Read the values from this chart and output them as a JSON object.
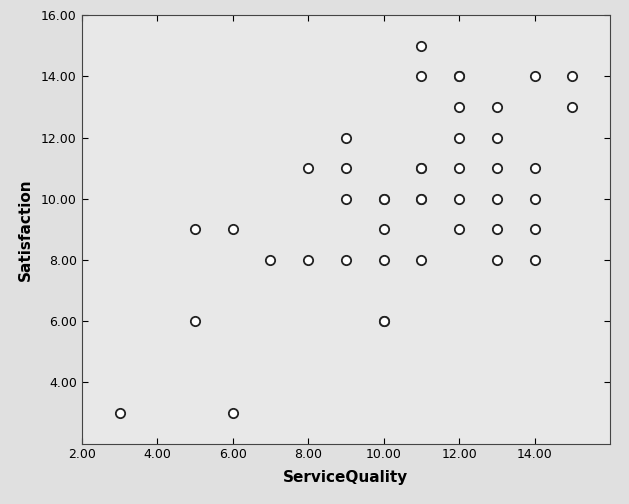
{
  "x": [
    3,
    6,
    5,
    5,
    6,
    7,
    8,
    8,
    9,
    9,
    9,
    9,
    10,
    10,
    10,
    10,
    10,
    10,
    11,
    11,
    11,
    11,
    11,
    11,
    11,
    12,
    12,
    12,
    12,
    12,
    12,
    12,
    13,
    13,
    13,
    13,
    13,
    13,
    14,
    14,
    14,
    14,
    14,
    15,
    15
  ],
  "y": [
    3,
    3,
    9,
    6,
    9,
    8,
    8,
    11,
    8,
    11,
    10,
    12,
    6,
    8,
    9,
    10,
    10,
    6,
    15,
    14,
    11,
    11,
    10,
    10,
    8,
    13,
    14,
    14,
    12,
    11,
    10,
    9,
    13,
    12,
    11,
    10,
    9,
    8,
    14,
    11,
    10,
    9,
    8,
    14,
    13
  ],
  "xlim": [
    2.0,
    16.0
  ],
  "ylim": [
    2.0,
    16.0
  ],
  "xticks": [
    2.0,
    4.0,
    6.0,
    8.0,
    10.0,
    12.0,
    14.0
  ],
  "yticks": [
    4.0,
    6.0,
    8.0,
    10.0,
    12.0,
    14.0,
    16.0
  ],
  "xlabel": "ServiceQuality",
  "ylabel": "Satisfaction",
  "marker_size": 45,
  "marker_color": "white",
  "marker_edge_color": "#222222",
  "marker_edge_width": 1.3,
  "plot_bg_color": "#e8e8e8",
  "fig_bg_color": "#e0e0e0",
  "marker_style": "o"
}
